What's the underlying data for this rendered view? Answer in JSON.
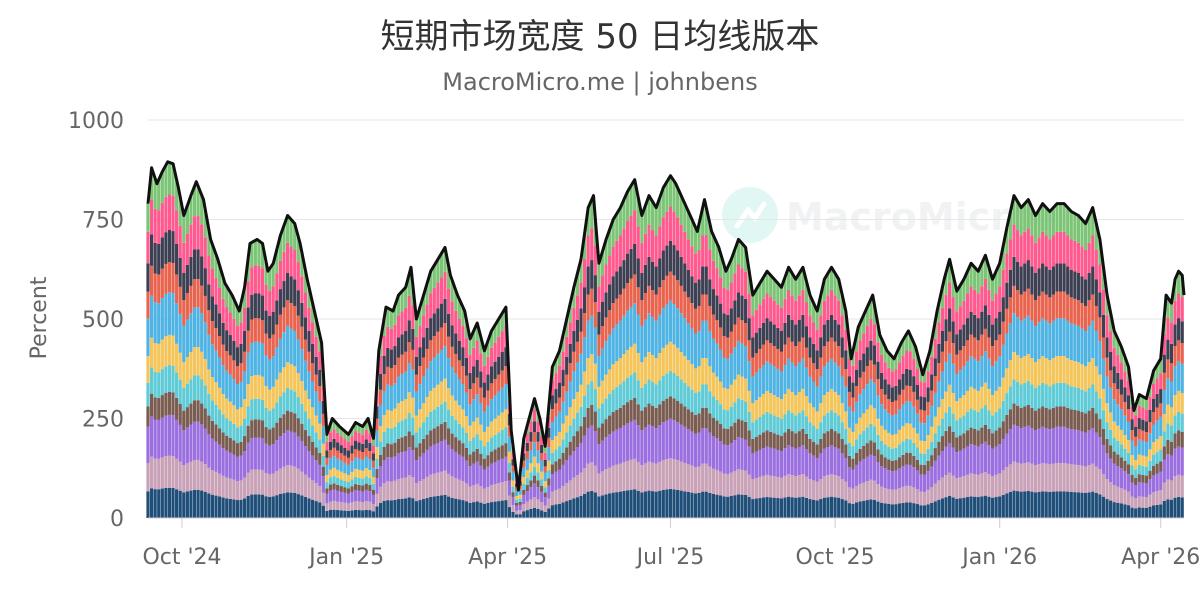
{
  "chart_data": {
    "type": "bar",
    "stacked": true,
    "title": "短期市场宽度 50 日均线版本",
    "subtitle": "MacroMicro.me | johnbens",
    "ylabel": "Percent",
    "ylim": [
      0,
      1000
    ],
    "yticks": [
      0,
      250,
      500,
      750,
      1000
    ],
    "xlim": [
      "2024-09-12",
      "2026-04-14"
    ],
    "xticks": [
      {
        "date": "2024-10-01",
        "label": "Oct '24"
      },
      {
        "date": "2025-01-01",
        "label": "Jan '25"
      },
      {
        "date": "2025-04-01",
        "label": "Apr '25"
      },
      {
        "date": "2025-07-01",
        "label": "Jul '25"
      },
      {
        "date": "2025-10-01",
        "label": "Oct '25"
      },
      {
        "date": "2026-01-01",
        "label": "Jan '26"
      },
      {
        "date": "2026-04-01",
        "label": "Apr '26"
      }
    ],
    "grid": true,
    "legend": "none",
    "total_line_color": "#111111",
    "series_colors": [
      "#1f4e79",
      "#c9a2b8",
      "#9b6fe0",
      "#7a5c50",
      "#5fcbd6",
      "#f4c55a",
      "#4fb3e3",
      "#e9644f",
      "#3d3f52",
      "#ff5a8f",
      "#7cc576"
    ],
    "series_weights": [
      0.085,
      0.09,
      0.115,
      0.065,
      0.075,
      0.085,
      0.12,
      0.085,
      0.09,
      0.1,
      0.09
    ],
    "total_points": [
      [
        "2024-09-12",
        790
      ],
      [
        "2024-09-14",
        880
      ],
      [
        "2024-09-17",
        840
      ],
      [
        "2024-09-20",
        870
      ],
      [
        "2024-09-23",
        895
      ],
      [
        "2024-09-26",
        890
      ],
      [
        "2024-09-29",
        830
      ],
      [
        "2024-10-02",
        760
      ],
      [
        "2024-10-06",
        810
      ],
      [
        "2024-10-09",
        845
      ],
      [
        "2024-10-13",
        800
      ],
      [
        "2024-10-17",
        700
      ],
      [
        "2024-10-21",
        650
      ],
      [
        "2024-10-25",
        590
      ],
      [
        "2024-10-29",
        560
      ],
      [
        "2024-11-02",
        520
      ],
      [
        "2024-11-05",
        580
      ],
      [
        "2024-11-08",
        690
      ],
      [
        "2024-11-12",
        700
      ],
      [
        "2024-11-15",
        690
      ],
      [
        "2024-11-18",
        620
      ],
      [
        "2024-11-21",
        640
      ],
      [
        "2024-11-25",
        710
      ],
      [
        "2024-11-29",
        760
      ],
      [
        "2024-12-03",
        740
      ],
      [
        "2024-12-06",
        690
      ],
      [
        "2024-12-10",
        600
      ],
      [
        "2024-12-14",
        520
      ],
      [
        "2024-12-18",
        440
      ],
      [
        "2024-12-21",
        210
      ],
      [
        "2024-12-24",
        250
      ],
      [
        "2024-12-28",
        230
      ],
      [
        "2025-01-02",
        210
      ],
      [
        "2025-01-06",
        240
      ],
      [
        "2025-01-10",
        230
      ],
      [
        "2025-01-13",
        250
      ],
      [
        "2025-01-16",
        200
      ],
      [
        "2025-01-19",
        420
      ],
      [
        "2025-01-23",
        530
      ],
      [
        "2025-01-27",
        520
      ],
      [
        "2025-01-30",
        560
      ],
      [
        "2025-02-03",
        580
      ],
      [
        "2025-02-06",
        630
      ],
      [
        "2025-02-09",
        500
      ],
      [
        "2025-02-13",
        560
      ],
      [
        "2025-02-17",
        620
      ],
      [
        "2025-02-21",
        650
      ],
      [
        "2025-02-25",
        680
      ],
      [
        "2025-02-28",
        610
      ],
      [
        "2025-03-04",
        560
      ],
      [
        "2025-03-08",
        520
      ],
      [
        "2025-03-11",
        450
      ],
      [
        "2025-03-15",
        490
      ],
      [
        "2025-03-19",
        420
      ],
      [
        "2025-03-23",
        470
      ],
      [
        "2025-03-27",
        500
      ],
      [
        "2025-03-31",
        530
      ],
      [
        "2025-04-03",
        220
      ],
      [
        "2025-04-07",
        70
      ],
      [
        "2025-04-10",
        200
      ],
      [
        "2025-04-13",
        250
      ],
      [
        "2025-04-16",
        300
      ],
      [
        "2025-04-19",
        250
      ],
      [
        "2025-04-22",
        180
      ],
      [
        "2025-04-26",
        380
      ],
      [
        "2025-04-30",
        420
      ],
      [
        "2025-05-04",
        500
      ],
      [
        "2025-05-08",
        580
      ],
      [
        "2025-05-12",
        650
      ],
      [
        "2025-05-16",
        780
      ],
      [
        "2025-05-19",
        810
      ],
      [
        "2025-05-22",
        640
      ],
      [
        "2025-05-26",
        700
      ],
      [
        "2025-05-30",
        750
      ],
      [
        "2025-06-03",
        780
      ],
      [
        "2025-06-07",
        820
      ],
      [
        "2025-06-11",
        850
      ],
      [
        "2025-06-15",
        760
      ],
      [
        "2025-06-19",
        810
      ],
      [
        "2025-06-23",
        780
      ],
      [
        "2025-06-27",
        830
      ],
      [
        "2025-07-01",
        860
      ],
      [
        "2025-07-04",
        840
      ],
      [
        "2025-07-08",
        800
      ],
      [
        "2025-07-12",
        760
      ],
      [
        "2025-07-16",
        720
      ],
      [
        "2025-07-20",
        800
      ],
      [
        "2025-07-24",
        720
      ],
      [
        "2025-07-28",
        680
      ],
      [
        "2025-08-01",
        620
      ],
      [
        "2025-08-04",
        650
      ],
      [
        "2025-08-08",
        700
      ],
      [
        "2025-08-12",
        680
      ],
      [
        "2025-08-16",
        560
      ],
      [
        "2025-08-20",
        590
      ],
      [
        "2025-08-24",
        620
      ],
      [
        "2025-08-28",
        600
      ],
      [
        "2025-09-01",
        580
      ],
      [
        "2025-09-05",
        630
      ],
      [
        "2025-09-09",
        600
      ],
      [
        "2025-09-13",
        630
      ],
      [
        "2025-09-17",
        560
      ],
      [
        "2025-09-21",
        520
      ],
      [
        "2025-09-25",
        600
      ],
      [
        "2025-09-29",
        630
      ],
      [
        "2025-10-03",
        600
      ],
      [
        "2025-10-07",
        520
      ],
      [
        "2025-10-10",
        400
      ],
      [
        "2025-10-14",
        480
      ],
      [
        "2025-10-18",
        520
      ],
      [
        "2025-10-22",
        560
      ],
      [
        "2025-10-26",
        460
      ],
      [
        "2025-10-30",
        420
      ],
      [
        "2025-11-03",
        400
      ],
      [
        "2025-11-07",
        440
      ],
      [
        "2025-11-11",
        470
      ],
      [
        "2025-11-15",
        430
      ],
      [
        "2025-11-19",
        360
      ],
      [
        "2025-11-23",
        420
      ],
      [
        "2025-11-27",
        520
      ],
      [
        "2025-12-01",
        600
      ],
      [
        "2025-12-04",
        650
      ],
      [
        "2025-12-08",
        570
      ],
      [
        "2025-12-12",
        600
      ],
      [
        "2025-12-16",
        640
      ],
      [
        "2025-12-20",
        620
      ],
      [
        "2025-12-24",
        660
      ],
      [
        "2025-12-28",
        600
      ],
      [
        "2026-01-01",
        640
      ],
      [
        "2026-01-05",
        730
      ],
      [
        "2026-01-09",
        810
      ],
      [
        "2026-01-13",
        780
      ],
      [
        "2026-01-17",
        800
      ],
      [
        "2026-01-21",
        760
      ],
      [
        "2026-01-25",
        790
      ],
      [
        "2026-01-29",
        770
      ],
      [
        "2026-02-02",
        790
      ],
      [
        "2026-02-06",
        790
      ],
      [
        "2026-02-10",
        770
      ],
      [
        "2026-02-14",
        760
      ],
      [
        "2026-02-18",
        740
      ],
      [
        "2026-02-22",
        780
      ],
      [
        "2026-02-26",
        700
      ],
      [
        "2026-03-02",
        560
      ],
      [
        "2026-03-06",
        470
      ],
      [
        "2026-03-10",
        430
      ],
      [
        "2026-03-14",
        380
      ],
      [
        "2026-03-17",
        270
      ],
      [
        "2026-03-20",
        310
      ],
      [
        "2026-03-24",
        300
      ],
      [
        "2026-03-28",
        370
      ],
      [
        "2026-04-01",
        400
      ],
      [
        "2026-04-04",
        560
      ],
      [
        "2026-04-07",
        540
      ],
      [
        "2026-04-09",
        600
      ],
      [
        "2026-04-11",
        620
      ],
      [
        "2026-04-13",
        610
      ],
      [
        "2026-04-14",
        560
      ]
    ]
  }
}
